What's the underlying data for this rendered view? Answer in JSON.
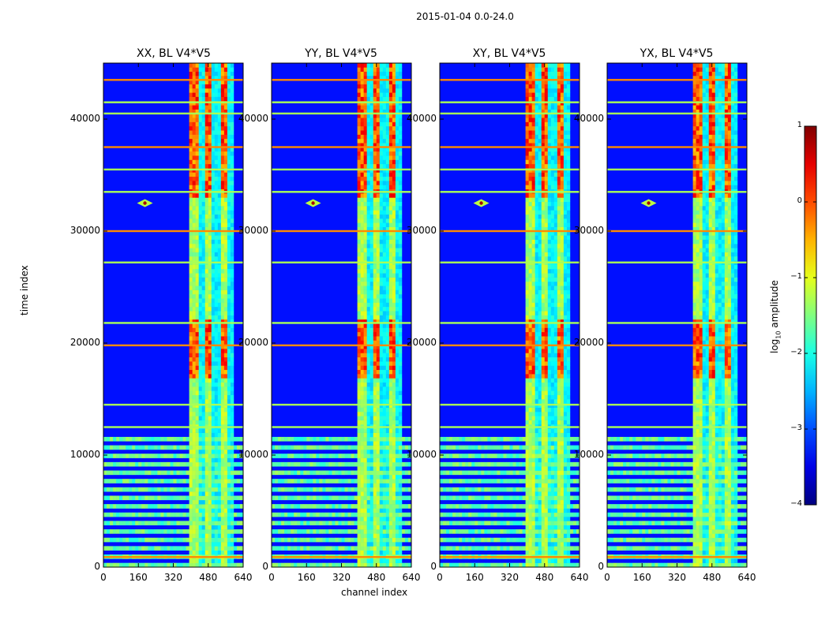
{
  "chart_data": {
    "type": "heatmap",
    "suptitle": "2015-01-04 0.0-24.0",
    "panels": [
      {
        "title": "XX, BL V4*V5"
      },
      {
        "title": "YY, BL V4*V5"
      },
      {
        "title": "XY, BL V4*V5"
      },
      {
        "title": "YX, BL V4*V5"
      }
    ],
    "xlabel": "channel index",
    "ylabel": "time index",
    "xlim": [
      0,
      640
    ],
    "ylim": [
      0,
      45000
    ],
    "xticks": [
      0,
      160,
      320,
      480,
      640
    ],
    "xtick_labels": [
      "0",
      "160",
      "320",
      "480",
      "640"
    ],
    "yticks": [
      0,
      10000,
      20000,
      30000,
      40000
    ],
    "ytick_labels": [
      "0",
      "10000",
      "20000",
      "30000",
      "40000"
    ],
    "colorbar": {
      "label_main": "log",
      "label_sub": "10",
      "label_rest": " amplitude",
      "range": [
        -4,
        1
      ],
      "ticks": [
        -4,
        -3,
        -2,
        -1,
        0,
        1
      ],
      "tick_labels": [
        "−4",
        "−3",
        "−2",
        "−1",
        "0",
        "1"
      ],
      "colormap": "jet"
    },
    "features": {
      "rfi_band_channels": [
        [
          400,
          600
        ],
        [
          400,
          600
        ],
        [
          400,
          600
        ],
        [
          400,
          600
        ]
      ],
      "strong_band_time": [
        [
          17000,
          22000
        ],
        [
          33000,
          45000
        ]
      ],
      "point_source_channel": 190,
      "point_source_time": 32500,
      "horizontal_flag_times": [
        900,
        12500,
        14500,
        19800,
        21800,
        27200,
        30000,
        33500,
        35500,
        37500,
        40500,
        41500,
        43500
      ],
      "dense_striping_time": [
        0,
        12000
      ]
    }
  }
}
